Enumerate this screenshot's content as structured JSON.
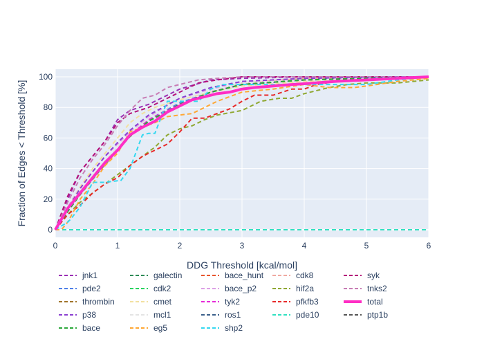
{
  "chart_data": {
    "type": "line",
    "xlabel": "DDG Threshold [kcal/mol]",
    "ylabel": "Fraction of Edges < Threshold [%]",
    "xlim": [
      0,
      6
    ],
    "ylim": [
      -5,
      105
    ],
    "x_ticks": [
      0,
      1,
      2,
      3,
      4,
      5,
      6
    ],
    "y_ticks": [
      0,
      20,
      40,
      60,
      80,
      100
    ],
    "grid": true,
    "legend_position": "bottom",
    "series": [
      {
        "name": "jnk1",
        "color": "#9b2fb5",
        "dash": "dash",
        "x": [
          0,
          0.2,
          0.4,
          0.6,
          0.8,
          1.0,
          1.2,
          1.5,
          1.8,
          2.0,
          2.5,
          3.0,
          4.0,
          6.0
        ],
        "y": [
          0,
          20,
          38,
          48,
          58,
          72,
          78,
          82,
          88,
          92,
          98,
          99,
          100,
          100
        ]
      },
      {
        "name": "galectin",
        "color": "#2e8b57",
        "dash": "dash",
        "x": [
          0,
          6
        ],
        "y": [
          0,
          0
        ]
      },
      {
        "name": "bace_hunt",
        "color": "#e8552d",
        "dash": "dash",
        "x": [
          0,
          6
        ],
        "y": [
          0,
          0
        ]
      },
      {
        "name": "cdk8",
        "color": "#f0a8a0",
        "dash": "dash",
        "x": [
          0,
          0.2,
          0.4,
          0.6,
          0.8,
          1.0,
          1.2,
          1.5,
          2.0,
          2.5,
          3.0,
          4.0,
          6.0
        ],
        "y": [
          0,
          12,
          25,
          35,
          42,
          52,
          62,
          72,
          82,
          90,
          96,
          99,
          100
        ]
      },
      {
        "name": "syk",
        "color": "#b5147a",
        "dash": "dash",
        "x": [
          0,
          0.2,
          0.4,
          0.6,
          0.8,
          1.0,
          1.2,
          1.5,
          1.8,
          2.0,
          2.3,
          2.6,
          3.0,
          3.5,
          4.0,
          5.0,
          6.0
        ],
        "y": [
          0,
          22,
          38,
          48,
          58,
          70,
          76,
          80,
          86,
          90,
          96,
          98,
          100,
          100,
          100,
          100,
          100
        ]
      },
      {
        "name": "pde2",
        "color": "#4d7fe8",
        "dash": "dash",
        "x": [
          0,
          0.2,
          0.4,
          0.6,
          0.8,
          1.0,
          1.2,
          1.5,
          2.0,
          2.5,
          3.0,
          4.0,
          6.0
        ],
        "y": [
          0,
          12,
          24,
          34,
          44,
          54,
          62,
          72,
          83,
          90,
          95,
          98,
          100
        ]
      },
      {
        "name": "cdk2",
        "color": "#2ad35f",
        "dash": "dash",
        "x": [
          0,
          0.2,
          0.4,
          0.6,
          0.8,
          1.0,
          1.2,
          1.5,
          2.0,
          2.5,
          3.0,
          4.0,
          6.0
        ],
        "y": [
          0,
          12,
          24,
          33,
          44,
          53,
          62,
          71,
          82,
          90,
          95,
          98,
          100
        ]
      },
      {
        "name": "bace_p2",
        "color": "#dca0e6",
        "dash": "dash",
        "x": [
          0,
          0.2,
          0.4,
          0.6,
          0.8,
          1.0,
          1.2,
          1.5,
          2.0,
          2.5,
          3.0,
          4.0,
          6.0
        ],
        "y": [
          0,
          15,
          28,
          38,
          48,
          56,
          64,
          74,
          86,
          92,
          97,
          99,
          100
        ]
      },
      {
        "name": "hif2a",
        "color": "#8fa832",
        "dash": "dash",
        "x": [
          0,
          0.2,
          0.4,
          0.6,
          0.8,
          1.0,
          1.2,
          1.4,
          1.6,
          1.8,
          2.0,
          2.2,
          2.4,
          2.6,
          3.0,
          3.3,
          3.6,
          3.8,
          4.0,
          4.4,
          4.7,
          5.0,
          5.5,
          6.0
        ],
        "y": [
          0,
          10,
          18,
          24,
          30,
          36,
          42,
          48,
          54,
          62,
          66,
          68,
          72,
          75,
          78,
          84,
          86,
          86,
          89,
          93,
          95,
          96,
          96,
          98
        ]
      },
      {
        "name": "tnks2",
        "color": "#c77cb4",
        "dash": "dash",
        "x": [
          0,
          0.2,
          0.4,
          0.6,
          0.8,
          1.0,
          1.2,
          1.4,
          1.6,
          1.8,
          2.0,
          2.3,
          2.6,
          3.0,
          4.0,
          6.0
        ],
        "y": [
          0,
          18,
          34,
          46,
          56,
          68,
          78,
          86,
          88,
          93,
          95,
          98,
          99,
          100,
          100,
          100
        ]
      },
      {
        "name": "thrombin",
        "color": "#a0742a",
        "dash": "dash",
        "x": [
          0,
          6
        ],
        "y": [
          0,
          0
        ]
      },
      {
        "name": "cmet",
        "color": "#f2e0a0",
        "dash": "dash",
        "x": [
          0,
          0.2,
          0.4,
          0.6,
          0.8,
          1.0,
          1.2,
          1.4,
          1.6,
          2.0,
          2.5,
          3.0,
          4.0,
          6.0
        ],
        "y": [
          0,
          14,
          28,
          40,
          50,
          60,
          70,
          76,
          80,
          85,
          90,
          94,
          97,
          99
        ]
      },
      {
        "name": "tyk2",
        "color": "#e62ad8",
        "dash": "dash",
        "x": [
          0,
          0.2,
          0.4,
          0.6,
          0.8,
          1.0,
          1.2,
          1.5,
          2.0,
          2.5,
          3.0,
          4.0,
          6.0
        ],
        "y": [
          0,
          12,
          24,
          34,
          44,
          52,
          62,
          72,
          82,
          90,
          95,
          98,
          100
        ]
      },
      {
        "name": "pfkfb3",
        "color": "#e82a2a",
        "dash": "dash",
        "x": [
          0,
          0.2,
          0.4,
          0.6,
          0.8,
          1.0,
          1.2,
          1.4,
          1.6,
          1.8,
          2.0,
          2.2,
          2.4,
          2.6,
          2.8,
          3.0,
          3.2,
          3.5,
          3.8,
          4.0,
          4.2,
          4.5,
          5.0,
          6.0
        ],
        "y": [
          0,
          10,
          16,
          24,
          30,
          34,
          42,
          48,
          52,
          56,
          64,
          73,
          73,
          76,
          79,
          84,
          88,
          88,
          92,
          92,
          95,
          97,
          98,
          100
        ]
      },
      {
        "name": "total",
        "color": "#ff2ec4",
        "dash": "solid",
        "x": [
          0,
          0.2,
          0.4,
          0.6,
          0.8,
          1.0,
          1.2,
          1.4,
          1.6,
          1.8,
          2.0,
          2.2,
          2.4,
          2.6,
          2.8,
          3.0,
          3.2,
          3.5,
          3.8,
          4.0,
          4.5,
          5.0,
          5.5,
          6.0
        ],
        "y": [
          0,
          14,
          24,
          34,
          44,
          52,
          62,
          67,
          71,
          77,
          81,
          85,
          87,
          89,
          90,
          92,
          93,
          94,
          95,
          95.5,
          97,
          98,
          99,
          100
        ]
      },
      {
        "name": "p38",
        "color": "#8a3fd0",
        "dash": "dash",
        "x": [
          0,
          0.2,
          0.4,
          0.6,
          0.8,
          1.0,
          1.2,
          1.5,
          2.0,
          2.5,
          3.0,
          4.0,
          6.0
        ],
        "y": [
          0,
          14,
          27,
          38,
          48,
          57,
          65,
          75,
          86,
          93,
          97,
          99,
          100
        ]
      },
      {
        "name": "mcl1",
        "color": "#e4e4e4",
        "dash": "dash",
        "x": [
          0,
          0.2,
          0.4,
          0.6,
          0.8,
          1.0,
          1.2,
          1.5,
          2.0,
          2.5,
          3.0,
          4.0,
          6.0
        ],
        "y": [
          0,
          13,
          25,
          35,
          45,
          54,
          63,
          73,
          84,
          91,
          96,
          98,
          100
        ]
      },
      {
        "name": "ros1",
        "color": "#3a5f8a",
        "dash": "dash",
        "x": [
          0,
          6
        ],
        "y": [
          0,
          0
        ]
      },
      {
        "name": "pde10",
        "color": "#30e0c0",
        "dash": "dash",
        "x": [
          0,
          6
        ],
        "y": [
          0,
          0
        ]
      },
      {
        "name": "ptp1b",
        "color": "#555555",
        "dash": "dash",
        "x": [
          0,
          0.2,
          0.4,
          0.6,
          0.8,
          1.0,
          1.2,
          1.5,
          2.0,
          2.5,
          3.0,
          4.0,
          6.0
        ],
        "y": [
          0,
          12,
          23,
          33,
          43,
          52,
          61,
          71,
          82,
          90,
          95,
          98,
          100
        ]
      },
      {
        "name": "bace",
        "color": "#2aa83a",
        "dash": "dash",
        "x": [
          0,
          0.2,
          0.4,
          0.6,
          0.8,
          1.0,
          1.2,
          1.5,
          2.0,
          2.5,
          3.0,
          4.0,
          6.0
        ],
        "y": [
          0,
          12,
          23,
          33,
          43,
          52,
          61,
          71,
          82,
          90,
          95,
          98,
          100
        ]
      },
      {
        "name": "eg5",
        "color": "#ffa733",
        "dash": "dash",
        "x": [
          0,
          0.1,
          0.2,
          0.4,
          0.6,
          0.8,
          1.0,
          1.2,
          1.4,
          1.6,
          1.8,
          2.0,
          2.2,
          2.4,
          2.6,
          3.0,
          3.5,
          4.0,
          4.4,
          4.8,
          5.0,
          5.5,
          6.0
        ],
        "y": [
          0,
          0,
          5,
          20,
          30,
          42,
          50,
          64,
          67,
          70,
          74,
          75,
          76,
          80,
          84,
          90,
          92,
          95,
          93,
          93,
          94,
          97,
          99
        ]
      },
      {
        "name": "shp2",
        "color": "#34d8f0",
        "dash": "dash",
        "x": [
          0,
          0.2,
          0.25,
          0.4,
          0.6,
          0.7,
          0.8,
          1.0,
          1.05,
          1.2,
          1.4,
          1.5,
          1.6,
          1.8,
          2.0,
          2.1,
          2.3,
          2.5,
          2.7,
          3.0,
          3.5,
          4.0,
          4.5,
          5.0,
          5.5,
          6.0
        ],
        "y": [
          0,
          5,
          7,
          15,
          31,
          31,
          31,
          32,
          32,
          40,
          62,
          63,
          63,
          84,
          84,
          84,
          84,
          92,
          95,
          95,
          95,
          95,
          95,
          95,
          98,
          100
        ]
      }
    ]
  }
}
